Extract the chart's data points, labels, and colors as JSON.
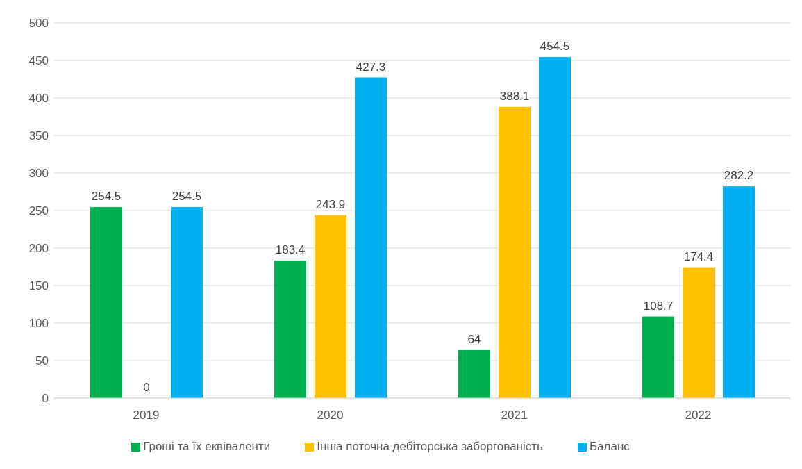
{
  "chart_data": {
    "type": "bar",
    "categories": [
      "2019",
      "2020",
      "2021",
      "2022"
    ],
    "series": [
      {
        "name": "Гроші та їх еквіваленти",
        "color": "#00b050",
        "values": [
          254.5,
          183.4,
          64,
          108.7
        ]
      },
      {
        "name": "Інша поточна дебіторська заборгованість",
        "color": "#ffc000",
        "values": [
          0,
          243.9,
          388.1,
          174.4
        ]
      },
      {
        "name": "Баланс",
        "color": "#00b0f0",
        "values": [
          254.5,
          427.3,
          454.5,
          282.2
        ]
      }
    ],
    "ylim": [
      0,
      500
    ],
    "yticks": [
      0,
      50,
      100,
      150,
      200,
      250,
      300,
      350,
      400,
      450,
      500
    ],
    "grid": "y",
    "legend": "bottom",
    "data_labels": true
  }
}
